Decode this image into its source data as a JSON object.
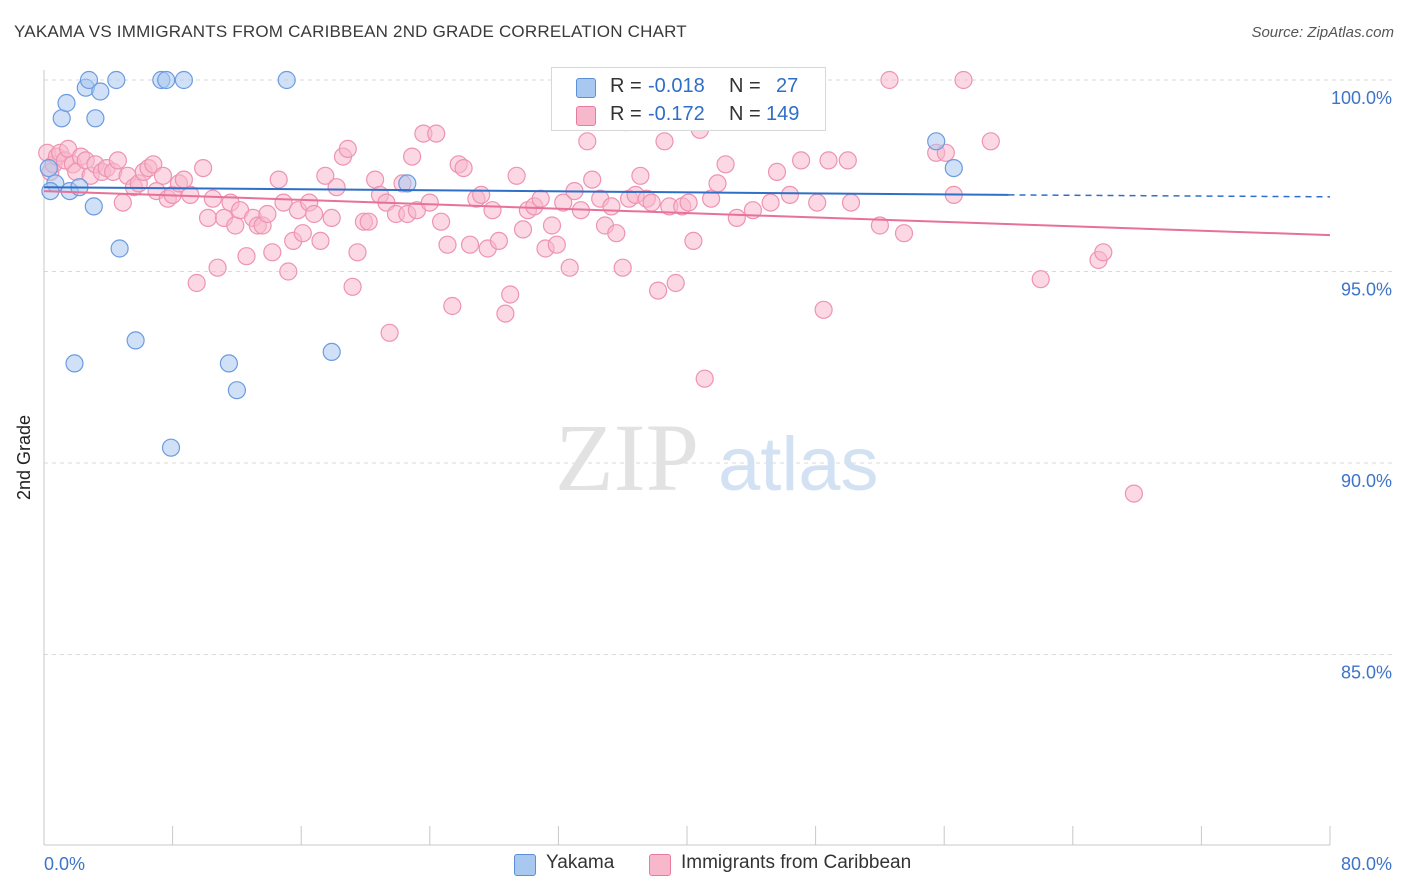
{
  "title": "YAKAMA VS IMMIGRANTS FROM CARIBBEAN 2ND GRADE CORRELATION CHART",
  "source": "Source: ZipAtlas.com",
  "watermark": {
    "zip": "ZIP",
    "atlas": "atlas"
  },
  "legend": {
    "rows": [
      {
        "r_label": "R =",
        "r_value": "-0.018",
        "n_label": "N =",
        "n_value": "27",
        "color": "#a9c8f0",
        "stroke": "#5b8fd6"
      },
      {
        "r_label": "R =",
        "r_value": "-0.172",
        "n_label": "N =",
        "n_value": "149",
        "color": "#f7b8cc",
        "stroke": "#e87ba0"
      }
    ]
  },
  "bottom_legend": [
    {
      "label": "Yakama",
      "color": "#a9c8f0"
    },
    {
      "label": "Immigrants from Caribbean",
      "color": "#f7b8cc"
    }
  ],
  "chart_data": {
    "type": "scatter",
    "xlabel": "",
    "ylabel": "2nd Grade",
    "xlim": [
      0,
      80
    ],
    "ylim": [
      80.5,
      100.7
    ],
    "x_tick_labels": [
      "0.0%",
      "80.0%"
    ],
    "y_ticks": [
      100,
      95,
      90,
      85
    ],
    "y_tick_labels": [
      "100.0%",
      "95.0%",
      "90.0%",
      "85.0%"
    ],
    "grid": true,
    "series": [
      {
        "name": "Yakama",
        "color": "#a9c8f0",
        "stroke": "#6c9be0",
        "trend": {
          "x0": 0,
          "y0": 97.2,
          "x1": 60,
          "y1": 97.0,
          "dash_to": 80,
          "dash_y": 96.95,
          "color": "#2f6fc7"
        },
        "points": [
          [
            0.3,
            97.7
          ],
          [
            0.7,
            97.3
          ],
          [
            1.1,
            99.0
          ],
          [
            1.4,
            99.4
          ],
          [
            1.6,
            97.1
          ],
          [
            2.2,
            97.2
          ],
          [
            2.6,
            99.8
          ],
          [
            2.8,
            100.0
          ],
          [
            3.1,
            96.7
          ],
          [
            3.2,
            99.0
          ],
          [
            3.5,
            99.7
          ],
          [
            4.5,
            100.0
          ],
          [
            4.7,
            95.6
          ],
          [
            5.7,
            93.2
          ],
          [
            1.9,
            92.6
          ],
          [
            7.3,
            100.0
          ],
          [
            7.6,
            100.0
          ],
          [
            7.9,
            90.4
          ],
          [
            8.7,
            100.0
          ],
          [
            11.5,
            92.6
          ],
          [
            12.0,
            91.9
          ],
          [
            15.1,
            100.0
          ],
          [
            17.9,
            92.9
          ],
          [
            22.6,
            97.3
          ],
          [
            55.5,
            98.4
          ],
          [
            56.6,
            97.7
          ],
          [
            0.4,
            97.1
          ]
        ]
      },
      {
        "name": "Immigrants from Caribbean",
        "color": "#f7b8cc",
        "stroke": "#ee93b2",
        "trend": {
          "x0": 0,
          "y0": 97.1,
          "x1": 80,
          "y1": 95.95,
          "color": "#e8719a"
        },
        "points": [
          [
            0.2,
            98.1
          ],
          [
            0.4,
            97.6
          ],
          [
            0.6,
            97.8
          ],
          [
            0.8,
            98.0
          ],
          [
            1.0,
            98.1
          ],
          [
            1.3,
            97.9
          ],
          [
            1.5,
            98.2
          ],
          [
            1.8,
            97.8
          ],
          [
            2.0,
            97.6
          ],
          [
            2.3,
            98.0
          ],
          [
            2.6,
            97.9
          ],
          [
            2.9,
            97.5
          ],
          [
            3.2,
            97.8
          ],
          [
            3.6,
            97.6
          ],
          [
            3.9,
            97.7
          ],
          [
            4.3,
            97.6
          ],
          [
            4.6,
            97.9
          ],
          [
            4.9,
            96.8
          ],
          [
            5.2,
            97.5
          ],
          [
            5.6,
            97.2
          ],
          [
            5.9,
            97.3
          ],
          [
            6.2,
            97.6
          ],
          [
            6.5,
            97.7
          ],
          [
            6.8,
            97.8
          ],
          [
            7.0,
            97.1
          ],
          [
            7.4,
            97.5
          ],
          [
            7.7,
            96.9
          ],
          [
            8.0,
            97.0
          ],
          [
            8.4,
            97.3
          ],
          [
            8.7,
            97.4
          ],
          [
            9.1,
            97.0
          ],
          [
            9.5,
            94.7
          ],
          [
            9.9,
            97.7
          ],
          [
            10.2,
            96.4
          ],
          [
            10.5,
            96.9
          ],
          [
            10.8,
            95.1
          ],
          [
            11.2,
            96.4
          ],
          [
            11.6,
            96.8
          ],
          [
            11.9,
            96.2
          ],
          [
            12.2,
            96.6
          ],
          [
            12.6,
            95.4
          ],
          [
            13.0,
            96.4
          ],
          [
            13.3,
            96.2
          ],
          [
            13.6,
            96.2
          ],
          [
            13.9,
            96.5
          ],
          [
            14.2,
            95.5
          ],
          [
            14.6,
            97.4
          ],
          [
            14.9,
            96.8
          ],
          [
            15.2,
            95.0
          ],
          [
            15.5,
            95.8
          ],
          [
            15.8,
            96.6
          ],
          [
            16.1,
            96.0
          ],
          [
            16.5,
            96.8
          ],
          [
            16.8,
            96.5
          ],
          [
            17.2,
            95.8
          ],
          [
            17.5,
            97.5
          ],
          [
            17.9,
            96.4
          ],
          [
            18.2,
            97.2
          ],
          [
            18.6,
            98.0
          ],
          [
            18.9,
            98.2
          ],
          [
            19.2,
            94.6
          ],
          [
            19.5,
            95.5
          ],
          [
            19.9,
            96.3
          ],
          [
            20.2,
            96.3
          ],
          [
            20.6,
            97.4
          ],
          [
            20.9,
            97.0
          ],
          [
            21.3,
            96.8
          ],
          [
            21.5,
            93.4
          ],
          [
            21.9,
            96.5
          ],
          [
            22.3,
            97.3
          ],
          [
            22.6,
            96.5
          ],
          [
            22.9,
            98.0
          ],
          [
            23.2,
            96.6
          ],
          [
            23.6,
            98.6
          ],
          [
            24.0,
            96.8
          ],
          [
            24.4,
            98.6
          ],
          [
            24.7,
            96.3
          ],
          [
            25.1,
            95.7
          ],
          [
            25.4,
            94.1
          ],
          [
            25.8,
            97.8
          ],
          [
            26.1,
            97.7
          ],
          [
            26.5,
            95.7
          ],
          [
            26.9,
            96.9
          ],
          [
            27.2,
            97.0
          ],
          [
            27.6,
            95.6
          ],
          [
            27.9,
            96.6
          ],
          [
            28.3,
            95.8
          ],
          [
            28.7,
            93.9
          ],
          [
            29.0,
            94.4
          ],
          [
            29.4,
            97.5
          ],
          [
            29.8,
            96.1
          ],
          [
            30.1,
            96.6
          ],
          [
            30.5,
            96.7
          ],
          [
            30.9,
            96.9
          ],
          [
            31.2,
            95.6
          ],
          [
            31.6,
            96.2
          ],
          [
            31.9,
            95.7
          ],
          [
            32.3,
            96.8
          ],
          [
            32.7,
            95.1
          ],
          [
            33.0,
            97.1
          ],
          [
            33.4,
            96.6
          ],
          [
            33.8,
            98.4
          ],
          [
            34.1,
            97.4
          ],
          [
            34.6,
            96.9
          ],
          [
            34.9,
            96.2
          ],
          [
            35.3,
            96.7
          ],
          [
            35.6,
            96.0
          ],
          [
            36.0,
            95.1
          ],
          [
            36.4,
            96.9
          ],
          [
            36.8,
            97.0
          ],
          [
            37.1,
            97.5
          ],
          [
            37.5,
            96.9
          ],
          [
            37.8,
            96.8
          ],
          [
            38.2,
            94.5
          ],
          [
            38.6,
            98.4
          ],
          [
            38.9,
            96.7
          ],
          [
            39.3,
            94.7
          ],
          [
            39.7,
            96.7
          ],
          [
            40.1,
            96.8
          ],
          [
            40.4,
            95.8
          ],
          [
            40.8,
            98.7
          ],
          [
            41.1,
            92.2
          ],
          [
            41.5,
            96.9
          ],
          [
            41.9,
            97.3
          ],
          [
            42.4,
            97.8
          ],
          [
            43.1,
            96.4
          ],
          [
            44.1,
            96.6
          ],
          [
            45.2,
            96.8
          ],
          [
            45.6,
            97.6
          ],
          [
            46.4,
            97.0
          ],
          [
            47.1,
            97.9
          ],
          [
            48.1,
            96.8
          ],
          [
            48.8,
            97.9
          ],
          [
            48.5,
            94.0
          ],
          [
            50.0,
            97.9
          ],
          [
            50.2,
            96.8
          ],
          [
            52.0,
            96.2
          ],
          [
            52.6,
            100.0
          ],
          [
            53.5,
            96.0
          ],
          [
            55.5,
            98.1
          ],
          [
            56.1,
            98.1
          ],
          [
            56.6,
            97.0
          ],
          [
            57.2,
            100.0
          ],
          [
            58.9,
            98.4
          ],
          [
            62.0,
            94.8
          ],
          [
            65.6,
            95.3
          ],
          [
            65.9,
            95.5
          ],
          [
            67.8,
            89.2
          ],
          [
            36.2,
            98.9
          ]
        ]
      }
    ]
  }
}
